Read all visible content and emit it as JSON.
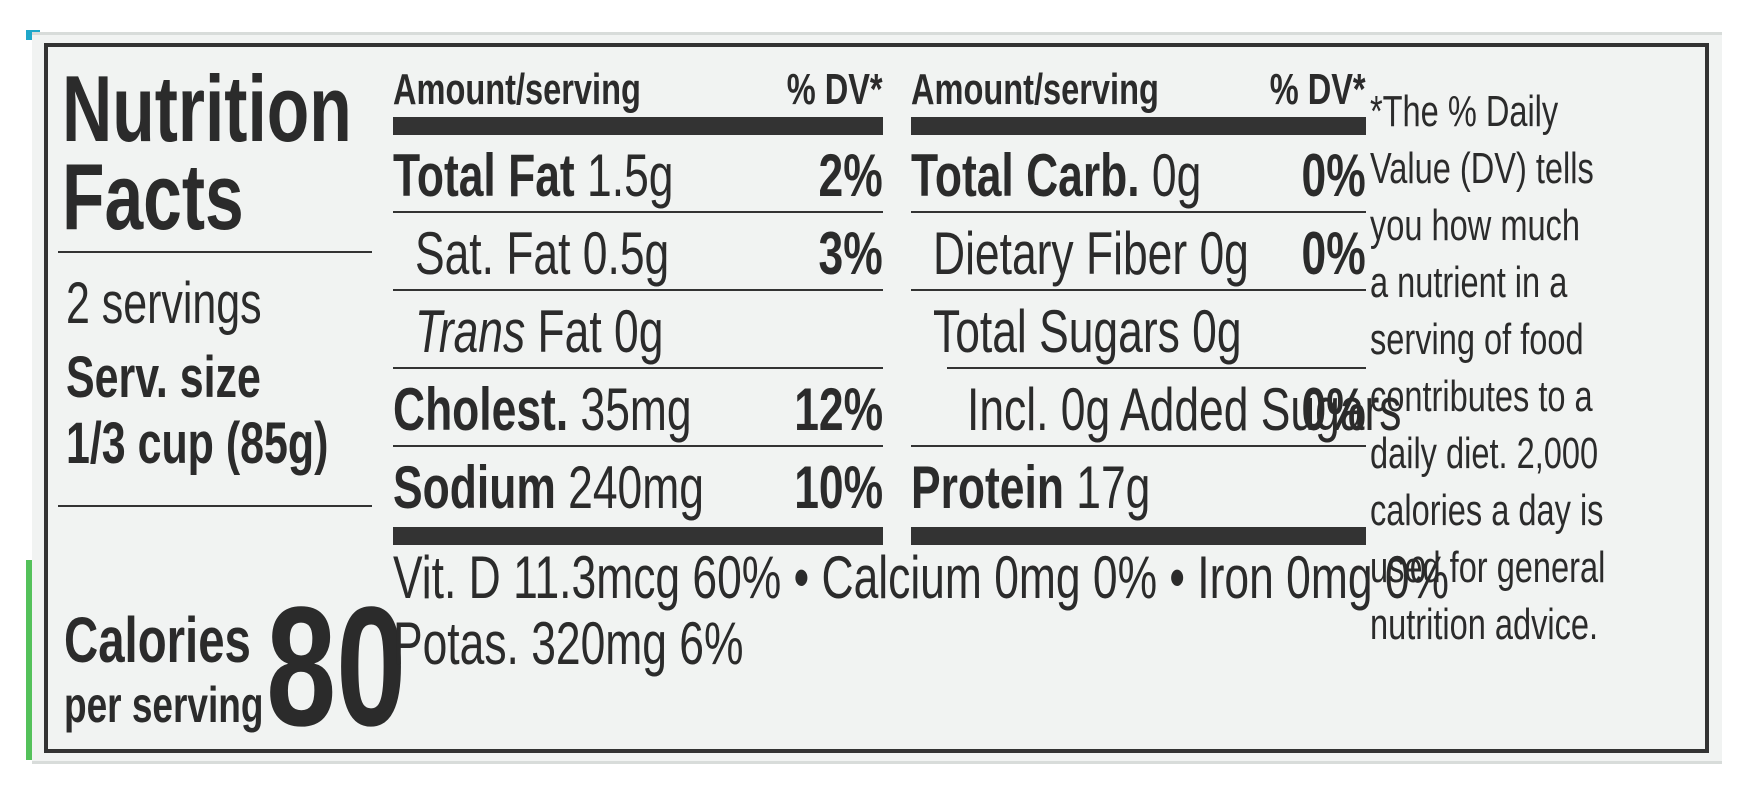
{
  "title": [
    "Nutrition",
    "Facts"
  ],
  "servings": {
    "count": "2 servings",
    "size_label": "Serv. size",
    "size_value": "1/3 cup (85g)"
  },
  "calories": {
    "label": "Calories",
    "sub": "per serving",
    "value": "80"
  },
  "header": {
    "amount": "Amount/serving",
    "dv": "% DV*"
  },
  "left_table": [
    {
      "bold": "Total Fat",
      "text": " 1.5g",
      "pct": "2%",
      "indent": 0,
      "italic": ""
    },
    {
      "bold": "",
      "text": "Sat. Fat 0.5g",
      "pct": "3%",
      "indent": 1,
      "italic": ""
    },
    {
      "bold": "",
      "text": " Fat 0g",
      "pct": "",
      "indent": 1,
      "italic": "Trans"
    },
    {
      "bold": "Cholest.",
      "text": " 35mg",
      "pct": "12%",
      "indent": 0,
      "italic": ""
    },
    {
      "bold": "Sodium",
      "text": " 240mg",
      "pct": "10%",
      "indent": 0,
      "italic": ""
    }
  ],
  "right_table": [
    {
      "bold": "Total Carb.",
      "text": " 0g",
      "pct": "0%",
      "indent": 0,
      "italic": ""
    },
    {
      "bold": "",
      "text": "Dietary Fiber 0g",
      "pct": "0%",
      "indent": 1,
      "italic": ""
    },
    {
      "bold": "",
      "text": "Total Sugars 0g",
      "pct": "",
      "indent": 1,
      "italic": ""
    },
    {
      "bold": "",
      "text": "Incl. 0g Added Sugars",
      "pct": "0%",
      "indent": 2,
      "italic": ""
    },
    {
      "bold": "Protein",
      "text": " 17g",
      "pct": "",
      "indent": 0,
      "italic": ""
    }
  ],
  "vitamins_line1": "Vit. D 11.3mcg 60% • Calcium 0mg 0% • Iron 0mg 0%",
  "vitamins_line2": "Potas. 320mg 6%",
  "footnote": [
    "*The % Daily",
    "Value (DV) tells",
    "you how much",
    "a nutrient in a",
    "serving of food",
    "contributes to a",
    "daily diet. 2,000",
    "calories a day is",
    "used for general",
    "nutrition advice."
  ]
}
